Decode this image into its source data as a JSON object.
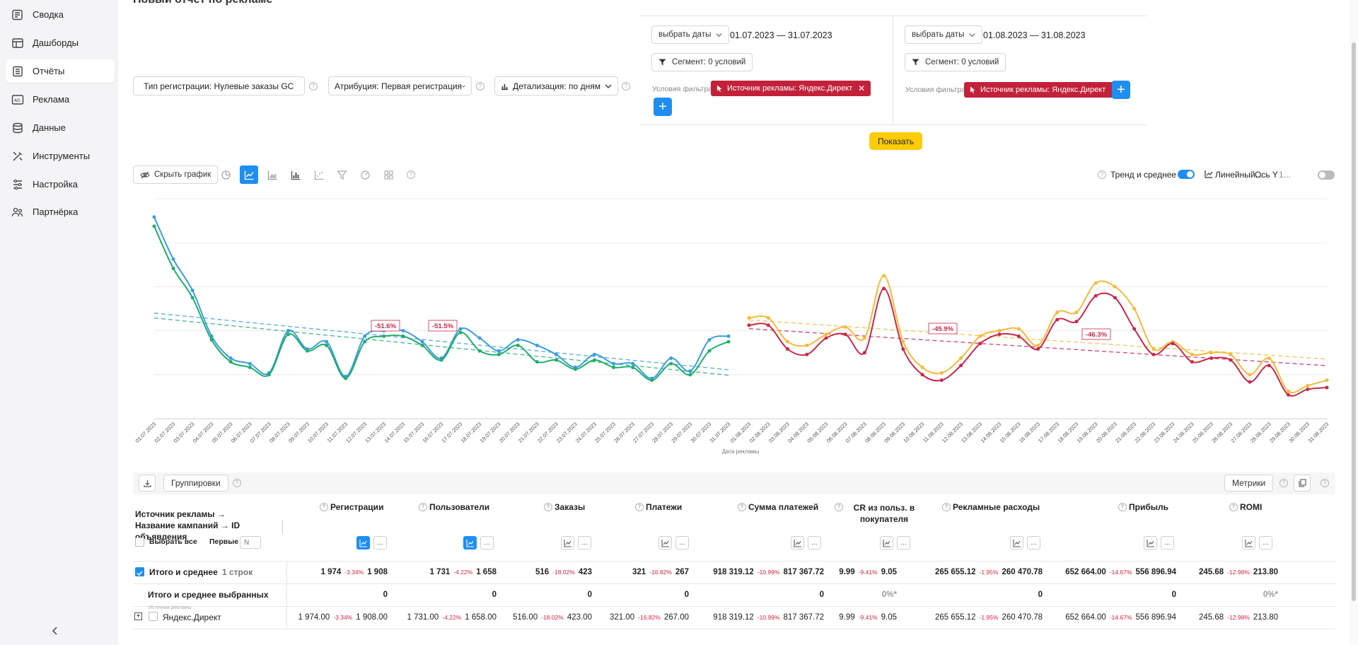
{
  "sidebar": {
    "items": [
      {
        "label": "Сводка",
        "icon": "summary-icon"
      },
      {
        "label": "Дашборды",
        "icon": "dashboard-icon"
      },
      {
        "label": "Отчёты",
        "icon": "reports-icon",
        "active": true
      },
      {
        "label": "Реклама",
        "icon": "ads-icon"
      },
      {
        "label": "Данные",
        "icon": "database-icon"
      },
      {
        "label": "Инструменты",
        "icon": "tools-icon"
      },
      {
        "label": "Настройка",
        "icon": "settings-icon"
      },
      {
        "label": "Партнёрка",
        "icon": "partners-icon"
      }
    ]
  },
  "page": {
    "title": "Новый отчёт по рекламе"
  },
  "params": {
    "reg_type": "Тип регистрации: Нулевые заказы GC",
    "attribution": "Атрибуция: Первая регистрация",
    "detail": "Детализация:  по дням"
  },
  "periods": [
    {
      "pick_dates": "выбрать даты",
      "range": "01.07.2023  —  31.07.2023",
      "segment": "Сегмент: 0 условий",
      "filter_label": "Условия фильтра:",
      "chip": "Источник рекламы: Яндекс.Директ"
    },
    {
      "pick_dates": "выбрать даты",
      "range": "01.08.2023  —  31.08.2023",
      "segment": "Сегмент: 0 условий",
      "filter_label": "Условия фильтра:",
      "chip": "Источник рекламы: Яндекс.Директ"
    }
  ],
  "show_button": "Показать",
  "chart_toolbar": {
    "hide_chart": "Скрыть график",
    "trend_label": "Тренд и среднее",
    "trend_on": true,
    "scale": "Линейный...",
    "axis_y": "Ось Y",
    "axis_y2": "1...",
    "axis_on": false
  },
  "chart_data": {
    "type": "line",
    "xlabel": "Дата рекламы",
    "x_left": [
      "01.07.2023",
      "02.07.2023",
      "03.07.2023",
      "04.07.2023",
      "05.07.2023",
      "06.07.2023",
      "07.07.2023",
      "08.07.2023",
      "09.07.2023",
      "10.07.2023",
      "11.07.2023",
      "12.07.2023",
      "13.07.2023",
      "14.07.2023",
      "15.07.2023",
      "16.07.2023",
      "17.07.2023",
      "18.07.2023",
      "19.07.2023",
      "20.07.2023",
      "21.07.2023",
      "22.07.2023",
      "23.07.2023",
      "24.07.2023",
      "25.07.2023",
      "26.07.2023",
      "27.07.2023",
      "28.07.2023",
      "29.07.2023",
      "30.07.2023",
      "31.07.2023"
    ],
    "x_right": [
      "01.08.2023",
      "02.08.2023",
      "03.08.2023",
      "04.08.2023",
      "05.08.2023",
      "06.08.2023",
      "07.08.2023",
      "08.08.2023",
      "09.08.2023",
      "10.08.2023",
      "11.08.2023",
      "12.08.2023",
      "13.08.2023",
      "14.08.2023",
      "15.08.2023",
      "16.08.2023",
      "17.08.2023",
      "18.08.2023",
      "19.08.2023",
      "20.08.2023",
      "21.08.2023",
      "22.08.2023",
      "23.08.2023",
      "24.08.2023",
      "25.08.2023",
      "26.08.2023",
      "27.08.2023",
      "28.08.2023",
      "29.08.2023",
      "30.08.2023",
      "31.08.2023"
    ],
    "ylim": [
      0,
      120
    ],
    "series": [
      {
        "color": "#3b9ddf",
        "side": "left",
        "values": [
          110,
          87,
          70,
          45,
          33,
          30,
          25,
          48,
          38,
          42,
          23,
          45,
          48,
          48,
          42,
          33,
          49,
          44,
          37,
          43,
          40,
          35,
          28,
          35,
          30,
          30,
          22,
          33,
          26,
          43,
          45
        ]
      },
      {
        "color": "#1fae6c",
        "side": "left",
        "values": [
          105,
          82,
          66,
          43,
          31,
          28,
          24,
          46,
          37,
          40,
          22,
          42,
          45,
          45,
          40,
          32,
          47,
          37,
          35,
          40,
          31,
          32,
          27,
          32,
          28,
          28,
          21,
          30,
          24,
          37,
          42
        ]
      },
      {
        "color": "#f3bb3c",
        "side": "right",
        "values": [
          55,
          55,
          42,
          40,
          46,
          50,
          44,
          78,
          42,
          28,
          25,
          33,
          45,
          48,
          49,
          40,
          58,
          58,
          74,
          72,
          60,
          38,
          42,
          35,
          36,
          35,
          24,
          33,
          15,
          18,
          21
        ]
      },
      {
        "color": "#c8284a",
        "side": "right",
        "values": [
          51,
          51,
          38,
          35,
          44,
          46,
          36,
          71,
          38,
          24,
          21,
          29,
          41,
          46,
          45,
          38,
          54,
          53,
          67,
          66,
          49,
          35,
          41,
          31,
          33,
          32,
          20,
          29,
          13,
          16,
          17
        ]
      }
    ],
    "trend_labels": [
      "-51.6%",
      "-51.5%",
      "-45.9%",
      "-46.3%"
    ]
  },
  "table": {
    "groupings": "Группировки",
    "metrics": "Метрики",
    "first_col_header": "Источник рекламы → Название кампаний → ID объявления",
    "select_all": "Выбрать все",
    "first_label": "Первые",
    "first_placeholder": "N",
    "columns": [
      "Регистрации",
      "Пользователи",
      "Заказы",
      "Платежи",
      "Сумма платежей",
      "CR из польз. в покупателя",
      "Рекламные расходы",
      "Прибыль",
      "ROMI"
    ],
    "total_row": {
      "label": "Итого и среднее",
      "rows_count": "1 строк",
      "cells": [
        {
          "a": "1 974",
          "d": "-3.34%",
          "b": "1 908"
        },
        {
          "a": "1 731",
          "d": "-4.22%",
          "b": "1 658"
        },
        {
          "a": "516",
          "d": "-18.02%",
          "b": "423"
        },
        {
          "a": "321",
          "d": "-16.82%",
          "b": "267"
        },
        {
          "a": "918 319.12",
          "d": "-10.99%",
          "b": "817 367.72"
        },
        {
          "a": "9.99",
          "d": "-9.41%",
          "b": "9.05"
        },
        {
          "a": "265 655.12",
          "d": "-1.95%",
          "b": "260 470.78"
        },
        {
          "a": "652 664.00",
          "d": "-14.67%",
          "b": "556 896.94"
        },
        {
          "a": "245.68",
          "d": "-12.98%",
          "b": "213.80"
        }
      ]
    },
    "selected_row": {
      "label": "Итого и среднее выбранных",
      "cells": [
        "0",
        "0",
        "0",
        "0",
        "0",
        "0%*",
        "0",
        "0",
        "0%*"
      ]
    },
    "data_row": {
      "sublabel": "Источник рекламы",
      "label": "Яндекс.Директ",
      "cells": [
        {
          "a": "1 974.00",
          "d": "-3.34%",
          "b": "1 908.00"
        },
        {
          "a": "1 731.00",
          "d": "-4.22%",
          "b": "1 658.00"
        },
        {
          "a": "516.00",
          "d": "-18.02%",
          "b": "423.00"
        },
        {
          "a": "321.00",
          "d": "-16.82%",
          "b": "267.00"
        },
        {
          "a": "918 319.12",
          "d": "-10.99%",
          "b": "817 367.72"
        },
        {
          "a": "9.99",
          "d": "-9.41%",
          "b": "9.05"
        },
        {
          "a": "265 655.12",
          "d": "-1.95%",
          "b": "260 470.78"
        },
        {
          "a": "652 664.00",
          "d": "-14.67%",
          "b": "556 896.94"
        },
        {
          "a": "245.68",
          "d": "-12.98%",
          "b": "213.80"
        }
      ]
    }
  }
}
